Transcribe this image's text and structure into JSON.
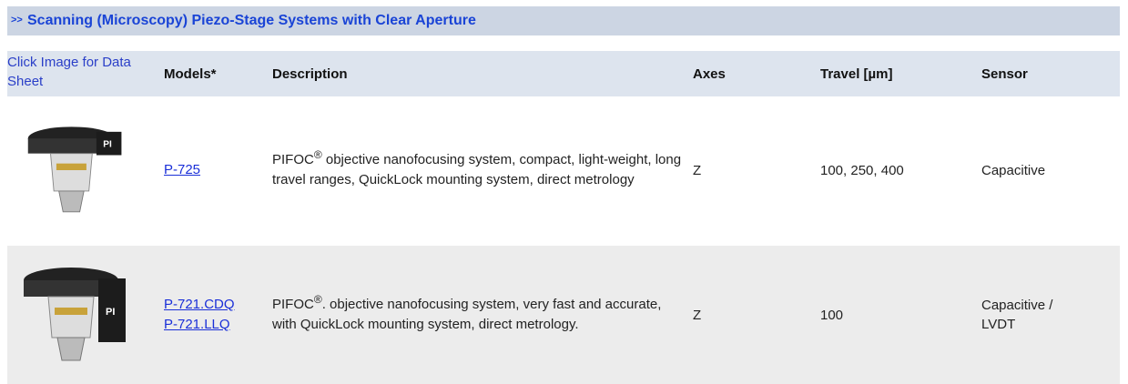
{
  "header": {
    "marker": ">>",
    "title": "Scanning (Microscopy) Piezo-Stage Systems with Clear Aperture"
  },
  "table": {
    "columns": [
      "Click Image for Data Sheet",
      "Models*",
      "Description",
      "Axes",
      "Travel [µm]",
      "Sensor"
    ],
    "rows": [
      {
        "models": [
          "P-725"
        ],
        "description": {
          "brand": "PIFOC",
          "mark": "®",
          "text": " objective nanofocusing system, compact, light-weight, long travel ranges, QuickLock mounting system, direct metrology"
        },
        "axes": "Z",
        "travel": "100, 250, 400",
        "sensor": "Capacitive"
      },
      {
        "models": [
          "P-721.CDQ",
          "P-721.LLQ"
        ],
        "description": {
          "brand": "PIFOC",
          "mark": "®",
          "text": ". objective nanofocusing system, very fast and accurate, with QuickLock mounting system, direct metrology."
        },
        "axes": "Z",
        "travel": "100",
        "sensor": "Capacitive / LVDT"
      }
    ]
  }
}
